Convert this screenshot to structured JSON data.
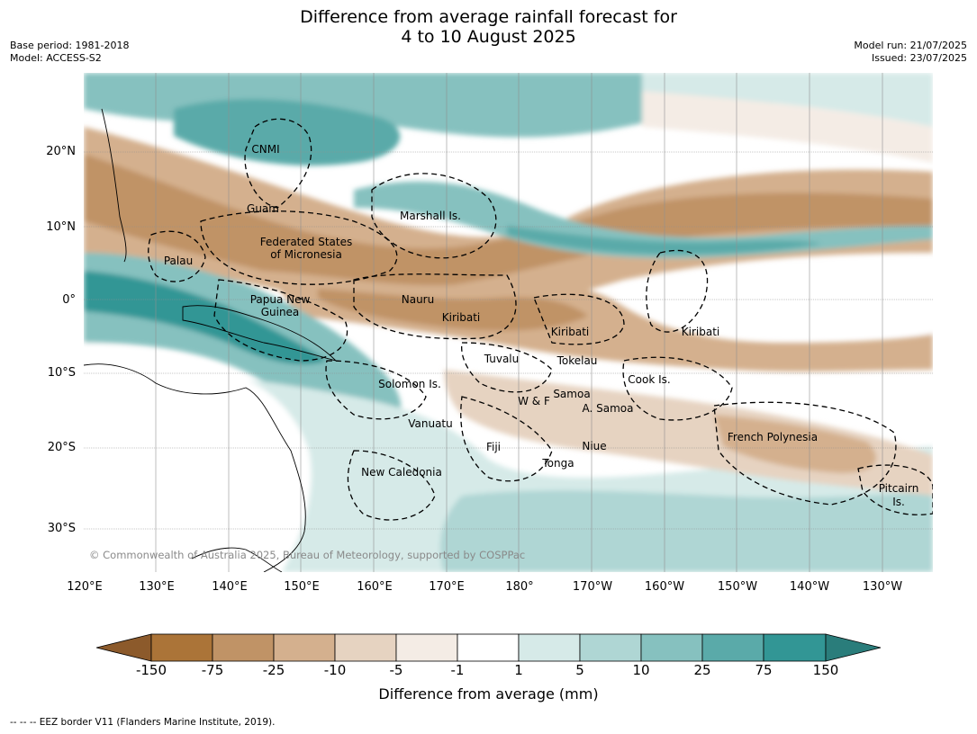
{
  "header": {
    "title_line1": "Difference from average rainfall forecast for",
    "title_line2": "4 to 10 August 2025",
    "base_period": "Base period: 1981-2018",
    "model": "Model: ACCESS-S2",
    "model_run": "Model run: 21/07/2025",
    "issued": "Issued: 23/07/2025"
  },
  "map": {
    "lat_labels": [
      "20°N",
      "10°N",
      "0°",
      "10°S",
      "20°S",
      "30°S"
    ],
    "lon_labels": [
      "120°E",
      "130°E",
      "140°E",
      "150°E",
      "160°E",
      "170°E",
      "180°",
      "170°W",
      "160°W",
      "150°W",
      "140°W",
      "130°W"
    ],
    "places": {
      "cnmi": "CNMI",
      "guam": "Guam",
      "marshall": "Marshall Is.",
      "fsm_1": "Federated States",
      "fsm_2": "of Micronesia",
      "palau": "Palau",
      "png_1": "Papua New",
      "png_2": "Guinea",
      "nauru": "Nauru",
      "kiribati_west": "Kiribati",
      "kiribati_central": "Kiribati",
      "kiribati_east": "Kiribati",
      "tuvalu": "Tuvalu",
      "tokelau": "Tokelau",
      "solomon": "Solomon Is.",
      "cook": "Cook Is.",
      "wf": "W & F",
      "samoa": "Samoa",
      "asamoa": "A. Samoa",
      "vanuatu": "Vanuatu",
      "fiji": "Fiji",
      "niue": "Niue",
      "french_polynesia": "French Polynesia",
      "tonga": "Tonga",
      "new_caledonia": "New Caledonia",
      "pitcairn_1": "Pitcairn",
      "pitcairn_2": "Is."
    },
    "copyright": "© Commonwealth of Australia 2025, Bureau of Meteorology, supported by COSPPac"
  },
  "colorbar": {
    "colors": [
      "#8c5a2b",
      "#ab7438",
      "#c09366",
      "#d4b08e",
      "#e6d3c1",
      "#f4ece5",
      "#ffffff",
      "#d6eae8",
      "#afd6d4",
      "#86c1bf",
      "#5aaaa9",
      "#329695",
      "#2a7d7b"
    ],
    "ticks": [
      "-150",
      "-75",
      "-25",
      "-10",
      "-5",
      "-1",
      "1",
      "5",
      "10",
      "25",
      "75",
      "150"
    ],
    "label": "Difference from average (mm)"
  },
  "footer": {
    "eez_note": "--  --  -- EEZ border V11 (Flanders Marine Institute, 2019)."
  }
}
